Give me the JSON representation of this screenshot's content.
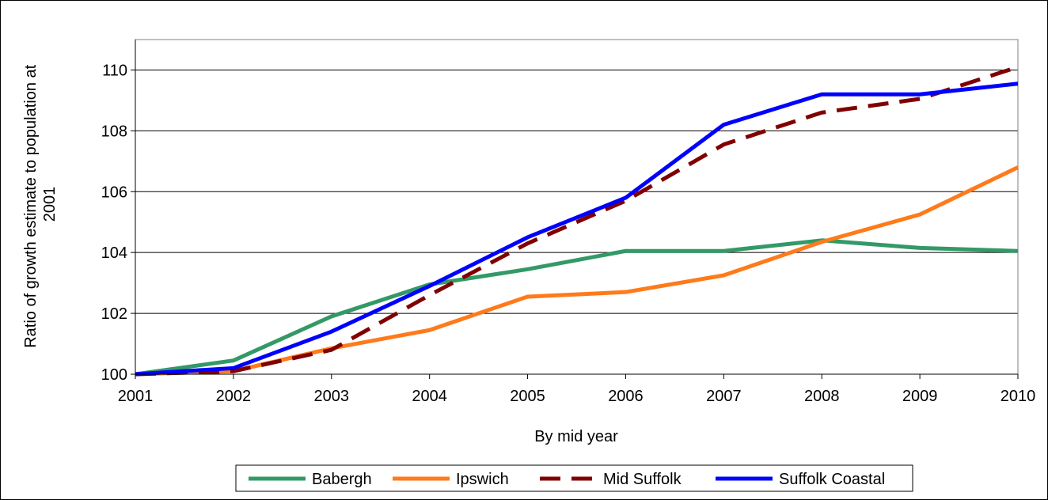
{
  "chart_data": {
    "type": "line",
    "title": "",
    "xlabel": "By mid year",
    "ylabel_lines": [
      "Ratio of growth estimate to population at",
      "2001"
    ],
    "x": [
      2001,
      2002,
      2003,
      2004,
      2005,
      2006,
      2007,
      2008,
      2009,
      2010
    ],
    "x_tick_labels": [
      "2001",
      "2002",
      "2003",
      "2004",
      "2005",
      "2006",
      "2007",
      "2008",
      "2009",
      "2010"
    ],
    "ylim": [
      100,
      111
    ],
    "y_ticks": [
      100,
      102,
      104,
      106,
      108,
      110
    ],
    "y_tick_labels": [
      "100",
      "102",
      "104",
      "106",
      "108",
      "110"
    ],
    "grid": "horizontal",
    "legend_position": "bottom",
    "series": [
      {
        "name": "Babergh",
        "color": "#339966",
        "dash": "solid",
        "values": [
          100,
          100.45,
          101.9,
          102.95,
          103.45,
          104.05,
          104.05,
          104.4,
          104.15,
          104.05
        ]
      },
      {
        "name": "Ipswich",
        "color": "#ff7a1a",
        "dash": "solid",
        "values": [
          100,
          100.1,
          100.85,
          101.45,
          102.55,
          102.7,
          103.25,
          104.35,
          105.25,
          106.8
        ]
      },
      {
        "name": "Mid Suffolk",
        "color": "#800000",
        "dash": "dashed",
        "values": [
          100,
          100.1,
          100.8,
          102.6,
          104.3,
          105.7,
          107.55,
          108.6,
          109.05,
          110.1
        ]
      },
      {
        "name": "Suffolk Coastal",
        "color": "#0000ff",
        "dash": "solid",
        "values": [
          100,
          100.2,
          101.4,
          102.9,
          104.5,
          105.8,
          108.2,
          109.2,
          109.2,
          109.55
        ]
      }
    ]
  }
}
